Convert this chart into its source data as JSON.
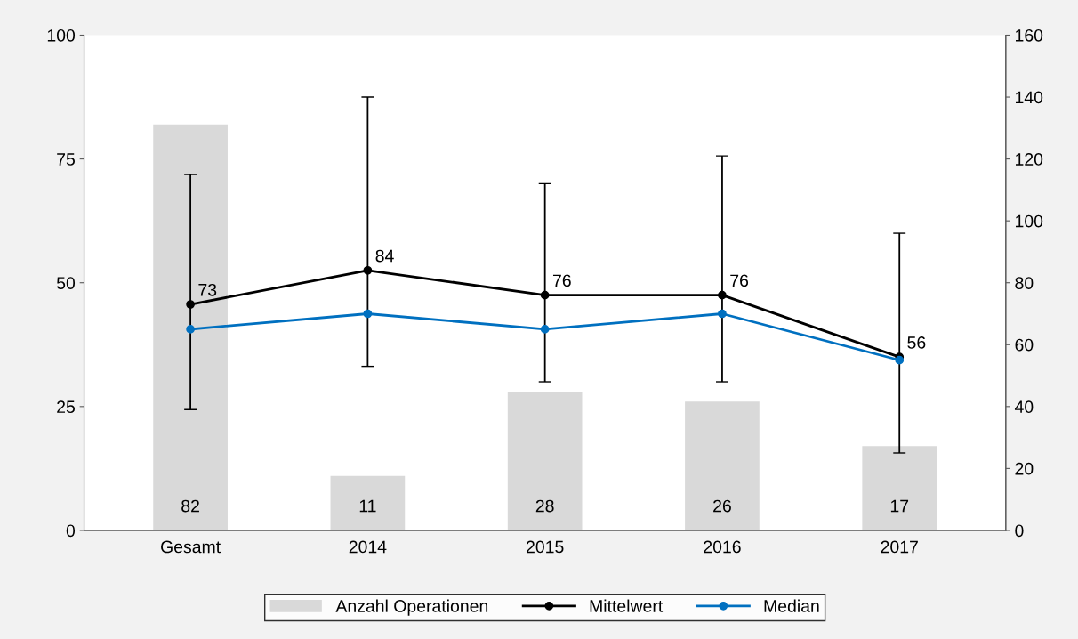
{
  "chart_data": {
    "type": "bar",
    "categories": [
      "Gesamt",
      "2014",
      "2015",
      "2016",
      "2017"
    ],
    "series": [
      {
        "name": "Anzahl Operationen",
        "color": "#d9d9d9",
        "values": [
          82,
          11,
          28,
          26,
          17
        ],
        "value_labels": [
          "82",
          "11",
          "28",
          "26",
          "17"
        ]
      },
      {
        "name": "Mittelwert",
        "type": "line",
        "axis": "y2",
        "color": "#000000",
        "marker": "circle",
        "values": [
          73,
          84,
          76,
          76,
          56
        ],
        "value_labels": [
          "73",
          "84",
          "76",
          "76",
          "56"
        ],
        "errors": [
          [
            39,
            115
          ],
          [
            53,
            140
          ],
          [
            48,
            112
          ],
          [
            48,
            121
          ],
          [
            25,
            96
          ]
        ]
      },
      {
        "name": "Median",
        "type": "line",
        "axis": "y2",
        "color": "#0070c0",
        "marker": "circle",
        "values": [
          65,
          70,
          65,
          70,
          55
        ]
      }
    ],
    "ylim": [
      0,
      100
    ],
    "yticks": [
      0,
      25,
      50,
      75,
      100
    ],
    "y2lim": [
      0,
      160
    ],
    "y2ticks": [
      0,
      20,
      40,
      60,
      80,
      100,
      120,
      140,
      160
    ],
    "grid": false,
    "legend": "bottom"
  }
}
